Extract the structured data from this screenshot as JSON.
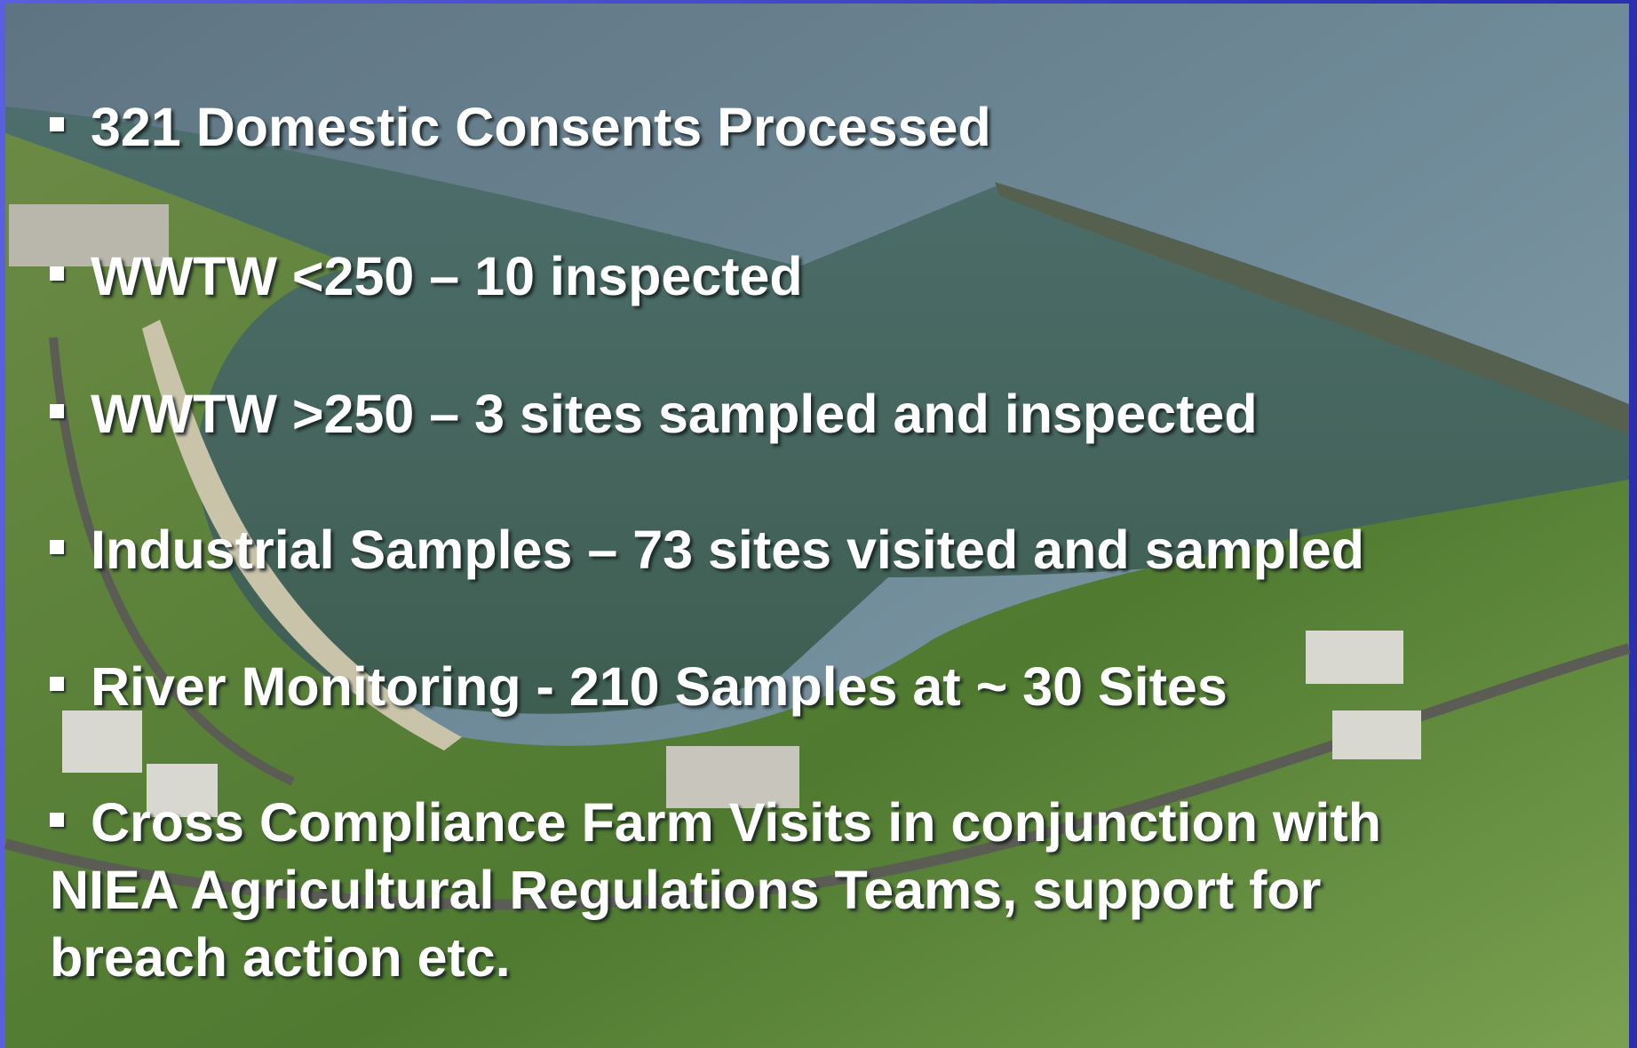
{
  "slide": {
    "bullets": [
      "321 Domestic Consents Processed",
      "WWTW <250 – 10 inspected",
      "WWTW >250 – 3 sites sampled and inspected",
      "Industrial Samples – 73 sites visited and sampled",
      "River Monitoring - 210 Samples at  ~ 30 Sites",
      "Cross Compliance Farm Visits in conjunction with NIEA Agricultural Regulations Teams, support for breach action etc."
    ]
  }
}
